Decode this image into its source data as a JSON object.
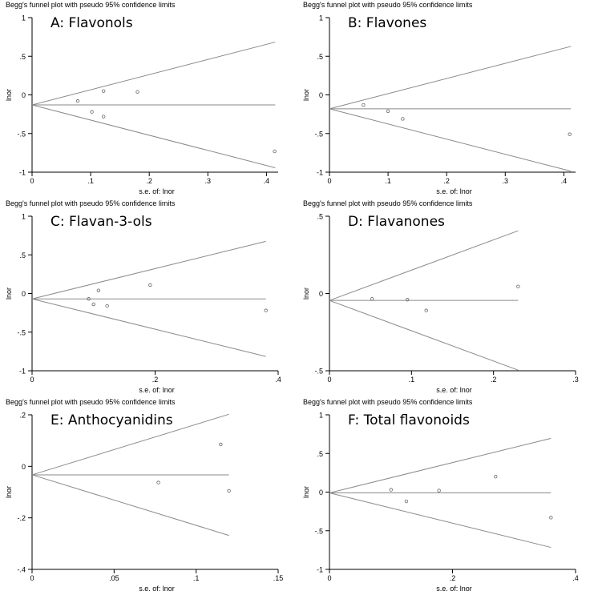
{
  "figure": {
    "header": "Begg's funnel plot with pseudo 95% confidence limits"
  },
  "chart_data": [
    {
      "type": "scatter",
      "panel_label": "A: Flavonols",
      "title": "Begg's funnel plot with pseudo 95% confidence limits",
      "xlabel": "s.e. of: lnor",
      "ylabel": "lnor",
      "xlim": [
        0,
        0.42
      ],
      "ylim": [
        -1,
        1
      ],
      "xticks": [
        0,
        0.1,
        0.2,
        0.3,
        0.4
      ],
      "xtick_labels": [
        "0",
        ".1",
        ".2",
        ".3",
        ".4"
      ],
      "yticks": [
        -1,
        -0.5,
        0,
        0.5,
        1
      ],
      "ytick_labels": [
        "-1",
        "-.5",
        "0",
        ".5",
        "1"
      ],
      "pooled": -0.13,
      "se_max": 0.415,
      "points": [
        {
          "x": 0.078,
          "y": -0.08
        },
        {
          "x": 0.102,
          "y": -0.22
        },
        {
          "x": 0.122,
          "y": 0.05
        },
        {
          "x": 0.122,
          "y": -0.28
        },
        {
          "x": 0.18,
          "y": 0.04
        },
        {
          "x": 0.414,
          "y": -0.73
        }
      ]
    },
    {
      "type": "scatter",
      "panel_label": "B: Flavones",
      "title": "Begg's funnel plot with pseudo 95% confidence limits",
      "xlabel": "s.e. of: lnor",
      "ylabel": "lnor",
      "xlim": [
        0,
        0.42
      ],
      "ylim": [
        -1,
        1
      ],
      "xticks": [
        0,
        0.1,
        0.2,
        0.3,
        0.4
      ],
      "xtick_labels": [
        "0",
        ".1",
        ".2",
        ".3",
        ".4"
      ],
      "yticks": [
        -1,
        -0.5,
        0,
        0.5,
        1
      ],
      "ytick_labels": [
        "-1",
        "-.5",
        "0",
        ".5",
        "1"
      ],
      "pooled": -0.18,
      "se_max": 0.412,
      "points": [
        {
          "x": 0.058,
          "y": -0.13
        },
        {
          "x": 0.1,
          "y": -0.21
        },
        {
          "x": 0.125,
          "y": -0.31
        },
        {
          "x": 0.41,
          "y": -0.51
        }
      ]
    },
    {
      "type": "scatter",
      "panel_label": "C: Flavan-3-ols",
      "title": "Begg's funnel plot with pseudo 95% confidence limits",
      "xlabel": "s.e. of: lnor",
      "ylabel": "lnor",
      "xlim": [
        0,
        0.4
      ],
      "ylim": [
        -1,
        1
      ],
      "xticks": [
        0,
        0.2,
        0.4
      ],
      "xtick_labels": [
        "0",
        ".2",
        ".4"
      ],
      "yticks": [
        -1,
        -0.5,
        0,
        0.5,
        1
      ],
      "ytick_labels": [
        "-1",
        "-.5",
        "0",
        ".5",
        "1"
      ],
      "pooled": -0.07,
      "se_max": 0.38,
      "points": [
        {
          "x": 0.092,
          "y": -0.07
        },
        {
          "x": 0.1,
          "y": -0.14
        },
        {
          "x": 0.108,
          "y": 0.04
        },
        {
          "x": 0.122,
          "y": -0.16
        },
        {
          "x": 0.192,
          "y": 0.11
        },
        {
          "x": 0.38,
          "y": -0.22
        }
      ]
    },
    {
      "type": "scatter",
      "panel_label": "D: Flavanones",
      "title": "Begg's funnel plot with pseudo 95% confidence limits",
      "xlabel": "s.e. of: lnor",
      "ylabel": "lnor",
      "xlim": [
        0,
        0.3
      ],
      "ylim": [
        -0.5,
        0.5
      ],
      "xticks": [
        0,
        0.1,
        0.2,
        0.3
      ],
      "xtick_labels": [
        "0",
        ".1",
        ".2",
        ".3"
      ],
      "yticks": [
        -0.5,
        0,
        0.5
      ],
      "ytick_labels": [
        "-.5",
        "0",
        ".5"
      ],
      "pooled": -0.045,
      "se_max": 0.23,
      "points": [
        {
          "x": 0.052,
          "y": -0.035
        },
        {
          "x": 0.095,
          "y": -0.04
        },
        {
          "x": 0.118,
          "y": -0.11
        },
        {
          "x": 0.23,
          "y": 0.045
        }
      ]
    },
    {
      "type": "scatter",
      "panel_label": "E: Anthocyanidins",
      "title": "Begg's funnel plot with pseudo 95% confidence limits",
      "xlabel": "s.e. of: lnor",
      "ylabel": "lnor",
      "xlim": [
        0,
        0.15
      ],
      "ylim": [
        -0.4,
        0.2
      ],
      "xticks": [
        0,
        0.05,
        0.1,
        0.15
      ],
      "xtick_labels": [
        "0",
        ".05",
        ".1",
        ".15"
      ],
      "yticks": [
        -0.4,
        -0.2,
        0,
        0.2
      ],
      "ytick_labels": [
        "-.4",
        "-.2",
        "0",
        ".2"
      ],
      "pooled": -0.033,
      "se_max": 0.12,
      "points": [
        {
          "x": 0.077,
          "y": -0.063
        },
        {
          "x": 0.115,
          "y": 0.085
        },
        {
          "x": 0.12,
          "y": -0.095
        }
      ]
    },
    {
      "type": "scatter",
      "panel_label": "F: Total flavonoids",
      "title": "Begg's funnel plot with pseudo 95% confidence limits",
      "xlabel": "s.e. of: lnor",
      "ylabel": "lnor",
      "xlim": [
        0,
        0.4
      ],
      "ylim": [
        -1,
        1
      ],
      "xticks": [
        0,
        0.2,
        0.4
      ],
      "xtick_labels": [
        "0",
        ".2",
        ".4"
      ],
      "yticks": [
        -1,
        -0.5,
        0,
        0.5,
        1
      ],
      "ytick_labels": [
        "-1",
        "-.5",
        "0",
        ".5",
        "1"
      ],
      "pooled": -0.01,
      "se_max": 0.36,
      "points": [
        {
          "x": 0.1,
          "y": 0.03
        },
        {
          "x": 0.125,
          "y": -0.12
        },
        {
          "x": 0.178,
          "y": 0.02
        },
        {
          "x": 0.27,
          "y": 0.2
        },
        {
          "x": 0.36,
          "y": -0.33
        }
      ]
    }
  ]
}
